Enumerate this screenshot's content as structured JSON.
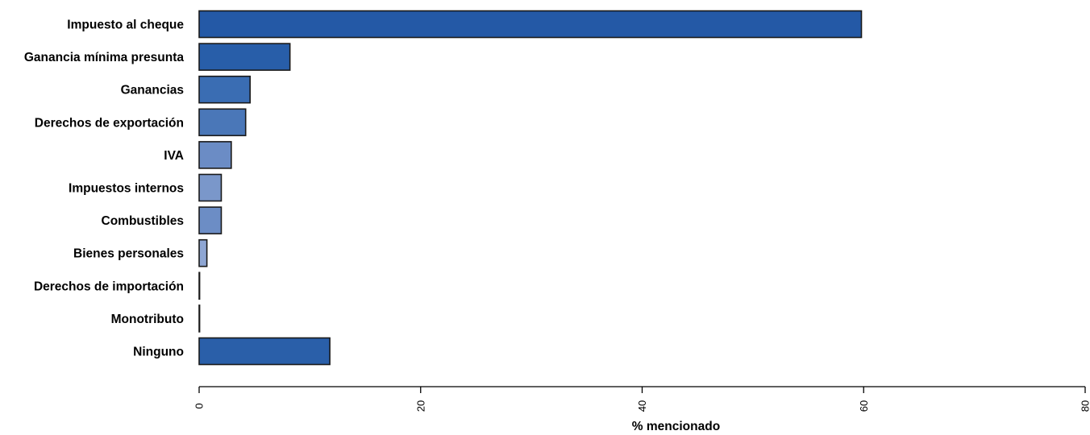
{
  "chart_data": {
    "type": "bar",
    "orientation": "horizontal",
    "categories": [
      "Impuesto al cheque",
      "Ganancia mínima presunta",
      "Ganancias",
      "Derechos de exportación",
      "IVA",
      "Impuestos internos",
      "Combustibles",
      "Bienes personales",
      "Derechos de importación",
      "Monotributo",
      "Ninguno"
    ],
    "values": [
      59.8,
      8.2,
      4.6,
      4.2,
      2.9,
      2.0,
      2.0,
      0.7,
      0,
      0,
      11.8
    ],
    "bar_colors": [
      "#2459a6",
      "#285ea9",
      "#3a6db3",
      "#4a77b8",
      "#6b8cc5",
      "#7a97ca",
      "#6c8dc5",
      "#8ea6d3",
      "#8ea6d3",
      "#8ea6d3",
      "#2a5fa9"
    ],
    "xlabel": "% mencionado",
    "ylabel": "",
    "xlim": [
      0,
      80
    ],
    "x_ticks": [
      0,
      20,
      40,
      60,
      80
    ],
    "x_tick_labels": [
      "0",
      "20",
      "40",
      "60",
      "80"
    ],
    "grid": false,
    "legend": null
  }
}
